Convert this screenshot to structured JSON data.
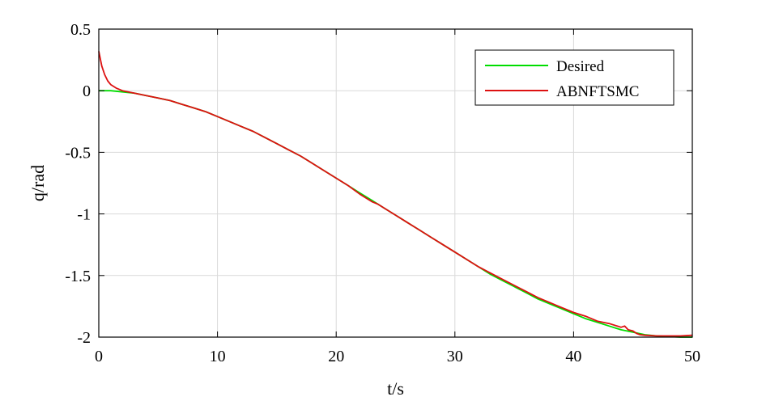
{
  "chart_data": {
    "type": "line",
    "xlabel": "t/s",
    "ylabel": "q/rad",
    "xlim": [
      0,
      50
    ],
    "ylim": [
      -2,
      0.5
    ],
    "xticks": [
      0,
      10,
      20,
      30,
      40,
      50
    ],
    "xtick_labels": [
      "0",
      "10",
      "20",
      "30",
      "40",
      "50"
    ],
    "yticks": [
      0.5,
      0,
      -0.5,
      -1,
      -1.5,
      -2
    ],
    "ytick_labels": [
      "0.5",
      "0",
      "-0.5",
      "-1",
      "-1.5",
      "-2"
    ],
    "grid": true,
    "legend_position": "top-right",
    "series": [
      {
        "name": "Desired",
        "color": "#00dd00",
        "x": [
          0,
          1,
          2,
          3,
          4,
          5,
          6,
          7,
          8,
          9,
          10,
          11,
          12,
          13,
          14,
          15,
          16,
          17,
          18,
          19,
          20,
          21,
          22,
          23,
          24,
          25,
          26,
          27,
          28,
          29,
          30,
          31,
          32,
          33,
          34,
          35,
          36,
          37,
          38,
          39,
          40,
          41,
          42,
          43,
          44,
          45,
          46,
          47,
          48,
          49,
          50
        ],
        "y": [
          0,
          0,
          -0.01,
          -0.02,
          -0.04,
          -0.06,
          -0.08,
          -0.11,
          -0.14,
          -0.17,
          -0.21,
          -0.25,
          -0.29,
          -0.33,
          -0.38,
          -0.43,
          -0.48,
          -0.53,
          -0.59,
          -0.65,
          -0.71,
          -0.77,
          -0.83,
          -0.89,
          -0.95,
          -1.01,
          -1.07,
          -1.13,
          -1.19,
          -1.25,
          -1.31,
          -1.37,
          -1.43,
          -1.49,
          -1.54,
          -1.59,
          -1.64,
          -1.69,
          -1.73,
          -1.77,
          -1.81,
          -1.85,
          -1.88,
          -1.91,
          -1.94,
          -1.96,
          -1.98,
          -1.99,
          -1.995,
          -2.0,
          -2.0
        ]
      },
      {
        "name": "ABNFTSMC",
        "color": "#dd1111",
        "x": [
          0,
          0.25,
          0.5,
          0.75,
          1,
          1.5,
          2,
          2.5,
          3,
          4,
          5,
          6,
          7,
          8,
          9,
          10,
          11,
          12,
          13,
          14,
          15,
          16,
          17,
          18,
          19,
          20,
          21,
          22,
          23,
          23.5,
          24,
          25,
          26,
          27,
          28,
          29,
          30,
          31,
          32,
          33,
          34,
          35,
          36,
          37,
          38,
          38.5,
          39,
          40,
          41,
          42,
          43,
          44,
          44.3,
          44.6,
          45,
          45.3,
          45.6,
          46,
          47,
          48,
          49,
          50
        ],
        "y": [
          0.32,
          0.2,
          0.13,
          0.08,
          0.05,
          0.02,
          0,
          -0.01,
          -0.02,
          -0.04,
          -0.06,
          -0.08,
          -0.11,
          -0.14,
          -0.17,
          -0.21,
          -0.25,
          -0.29,
          -0.33,
          -0.38,
          -0.43,
          -0.48,
          -0.53,
          -0.59,
          -0.65,
          -0.71,
          -0.77,
          -0.84,
          -0.9,
          -0.92,
          -0.95,
          -1.01,
          -1.07,
          -1.13,
          -1.19,
          -1.25,
          -1.31,
          -1.37,
          -1.43,
          -1.48,
          -1.53,
          -1.58,
          -1.63,
          -1.68,
          -1.72,
          -1.74,
          -1.76,
          -1.8,
          -1.83,
          -1.87,
          -1.89,
          -1.92,
          -1.91,
          -1.94,
          -1.95,
          -1.97,
          -1.98,
          -1.985,
          -1.99,
          -1.99,
          -1.99,
          -1.985
        ]
      }
    ]
  }
}
